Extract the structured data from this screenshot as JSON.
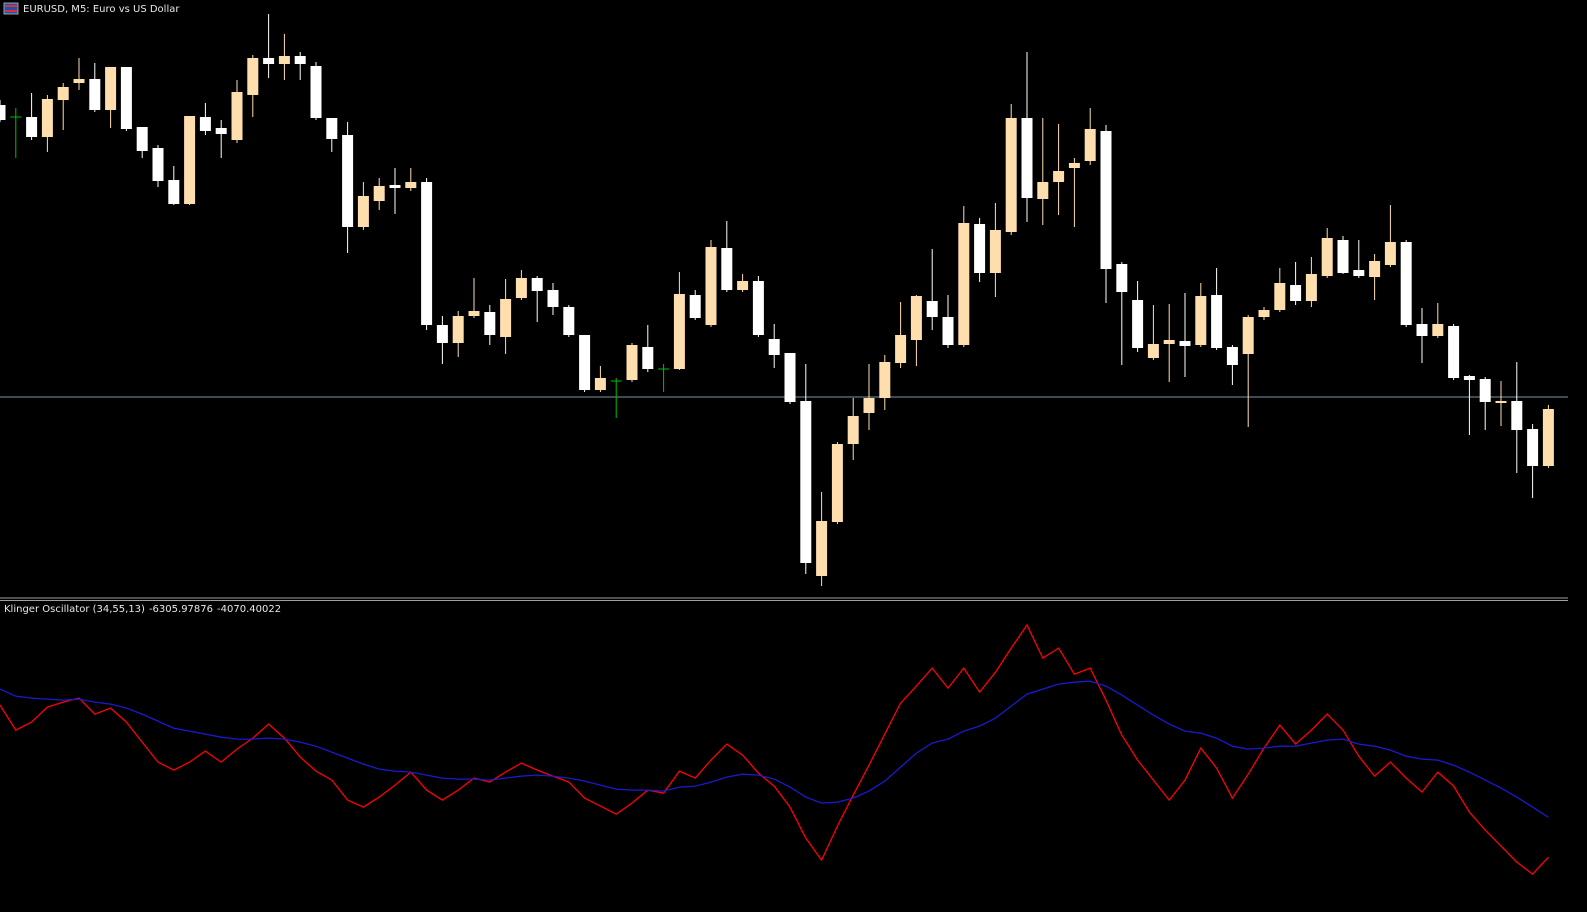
{
  "chart_data": [
    {
      "type": "candlestick",
      "title": "EURUSD, M5:  Euro vs US Dollar",
      "ylim": [
        0,
        580
      ],
      "up_color": "#ffdead",
      "down_color": "#ffffff",
      "doji_color": "#00c000",
      "price_line": 193,
      "price_line_color": "#7d93a8",
      "open": [
        485,
        473,
        473,
        453,
        490,
        507,
        511,
        480,
        523,
        463,
        442,
        410,
        386,
        473,
        462,
        450,
        495,
        532,
        526,
        534,
        524,
        472,
        455,
        363,
        389,
        405,
        402,
        408,
        265,
        247,
        274,
        278,
        253,
        292,
        312,
        300,
        283,
        255,
        200,
        209,
        210,
        243,
        221,
        221,
        295,
        265,
        342,
        300,
        309,
        251,
        237,
        189,
        14,
        68,
        146,
        177,
        192,
        227,
        250,
        289,
        273,
        245,
        366,
        317,
        358,
        472,
        391,
        408,
        422,
        429,
        459,
        326,
        290,
        232,
        246,
        249,
        245,
        295,
        243,
        236,
        273,
        280,
        305,
        289,
        314,
        350,
        320,
        313,
        325,
        348,
        266,
        254,
        264,
        214,
        211,
        187,
        189,
        161,
        124
      ],
      "high": [
        490,
        482,
        497,
        495,
        507,
        532,
        527,
        523,
        523,
        463,
        445,
        424,
        474,
        487,
        470,
        510,
        535,
        576,
        556,
        538,
        528,
        472,
        468,
        408,
        412,
        422,
        422,
        412,
        274,
        279,
        312,
        285,
        311,
        320,
        314,
        307,
        285,
        255,
        224,
        212,
        247,
        265,
        226,
        318,
        300,
        350,
        369,
        316,
        314,
        266,
        237,
        226,
        98,
        148,
        192,
        226,
        235,
        288,
        295,
        341,
        295,
        384,
        372,
        387,
        486,
        538,
        472,
        466,
        432,
        482,
        465,
        328,
        309,
        285,
        286,
        297,
        307,
        322,
        245,
        275,
        283,
        322,
        328,
        333,
        362,
        354,
        350,
        336,
        385,
        350,
        282,
        287,
        266,
        215,
        213,
        209,
        228,
        166,
        185
      ],
      "low": [
        468,
        432,
        450,
        438,
        460,
        500,
        478,
        462,
        459,
        432,
        403,
        385,
        385,
        455,
        432,
        447,
        473,
        512,
        510,
        510,
        470,
        438,
        337,
        360,
        380,
        376,
        399,
        260,
        226,
        233,
        272,
        245,
        236,
        290,
        268,
        275,
        253,
        198,
        198,
        172,
        208,
        218,
        198,
        220,
        270,
        263,
        298,
        298,
        253,
        222,
        186,
        16,
        4,
        66,
        130,
        160,
        180,
        222,
        224,
        260,
        242,
        243,
        308,
        293,
        355,
        368,
        365,
        375,
        363,
        425,
        287,
        225,
        238,
        230,
        208,
        213,
        243,
        240,
        205,
        163,
        270,
        278,
        285,
        283,
        312,
        316,
        312,
        290,
        323,
        263,
        227,
        252,
        210,
        155,
        160,
        164,
        117,
        92,
        122
      ],
      "close": [
        470,
        473,
        453,
        491,
        503,
        511,
        480,
        523,
        461,
        439,
        409,
        386,
        474,
        459,
        456,
        498,
        532,
        526,
        534,
        526,
        472,
        451,
        363,
        394,
        404,
        402,
        408,
        265,
        247,
        274,
        279,
        255,
        291,
        312,
        299,
        283,
        255,
        200,
        212,
        209,
        245,
        221,
        221,
        296,
        272,
        343,
        300,
        309,
        255,
        235,
        188,
        27,
        69,
        146,
        174,
        192,
        228,
        255,
        294,
        273,
        245,
        367,
        317,
        360,
        472,
        392,
        408,
        419,
        427,
        461,
        321,
        298,
        242,
        246,
        250,
        244,
        294,
        242,
        225,
        273,
        280,
        307,
        289,
        316,
        352,
        317,
        314,
        329,
        348,
        265,
        254,
        266,
        212,
        210,
        188,
        189,
        160,
        124,
        181
      ]
    },
    {
      "type": "line",
      "title": "Klinger Oscillator (34,55,13)",
      "ylim": [
        -8700,
        7900
      ],
      "series": [
        {
          "color": "#ff0000",
          "values": [
            2191,
            794,
            1241,
            2079,
            2359,
            2582,
            1688,
            2023,
            1241,
            123,
            -995,
            -1442,
            -995,
            -380,
            -995,
            -268,
            347,
            1129,
            347,
            -715,
            -1498,
            -2001,
            -3119,
            -3510,
            -2951,
            -2280,
            -1554,
            -2560,
            -3119,
            -2560,
            -1889,
            -2113,
            -1554,
            -1051,
            -1442,
            -1777,
            -2113,
            -3007,
            -3454,
            -3901,
            -3286,
            -2560,
            -2727,
            -1498,
            -1889,
            -883,
            11,
            -604,
            -1610,
            -2336,
            -3510,
            -5242,
            -6472,
            -4572,
            -2839,
            -1163,
            570,
            2303,
            3253,
            4259,
            3141,
            4259,
            2917,
            4035,
            5377,
            6662,
            4818,
            5377,
            3923,
            4259,
            2470,
            514,
            -883,
            -2001,
            -3119,
            -2001,
            -212,
            -1330,
            -3007,
            -1666,
            -212,
            1073,
            11,
            794,
            1688,
            794,
            -660,
            -1777,
            -995,
            -1889,
            -2672,
            -1554,
            -2336,
            -3789,
            -4795,
            -5690,
            -6584,
            -7255,
            -6305.97876
          ]
        },
        {
          "color": "#1a1ad0",
          "values": [
            3085,
            2694,
            2582,
            2526,
            2470,
            2526,
            2359,
            2247,
            2023,
            1688,
            1297,
            905,
            738,
            570,
            402,
            291,
            291,
            347,
            291,
            123,
            -101,
            -436,
            -771,
            -1107,
            -1386,
            -1498,
            -1554,
            -1721,
            -1889,
            -1945,
            -1945,
            -2001,
            -1889,
            -1777,
            -1721,
            -1777,
            -1889,
            -2057,
            -2280,
            -2504,
            -2560,
            -2560,
            -2616,
            -2392,
            -2336,
            -2113,
            -1833,
            -1666,
            -1721,
            -1945,
            -2392,
            -2951,
            -3286,
            -3230,
            -3007,
            -2616,
            -2057,
            -1274,
            -492,
            67,
            291,
            738,
            1017,
            1464,
            2135,
            2806,
            3085,
            3365,
            3476,
            3532,
            3253,
            2750,
            2191,
            1632,
            1129,
            738,
            626,
            347,
            -101,
            -268,
            -212,
            -101,
            -101,
            67,
            235,
            291,
            11,
            -101,
            -324,
            -660,
            -827,
            -883,
            -1163,
            -1554,
            -2001,
            -2448,
            -2951,
            -3510,
            -4070.40022
          ]
        }
      ]
    }
  ]
}
